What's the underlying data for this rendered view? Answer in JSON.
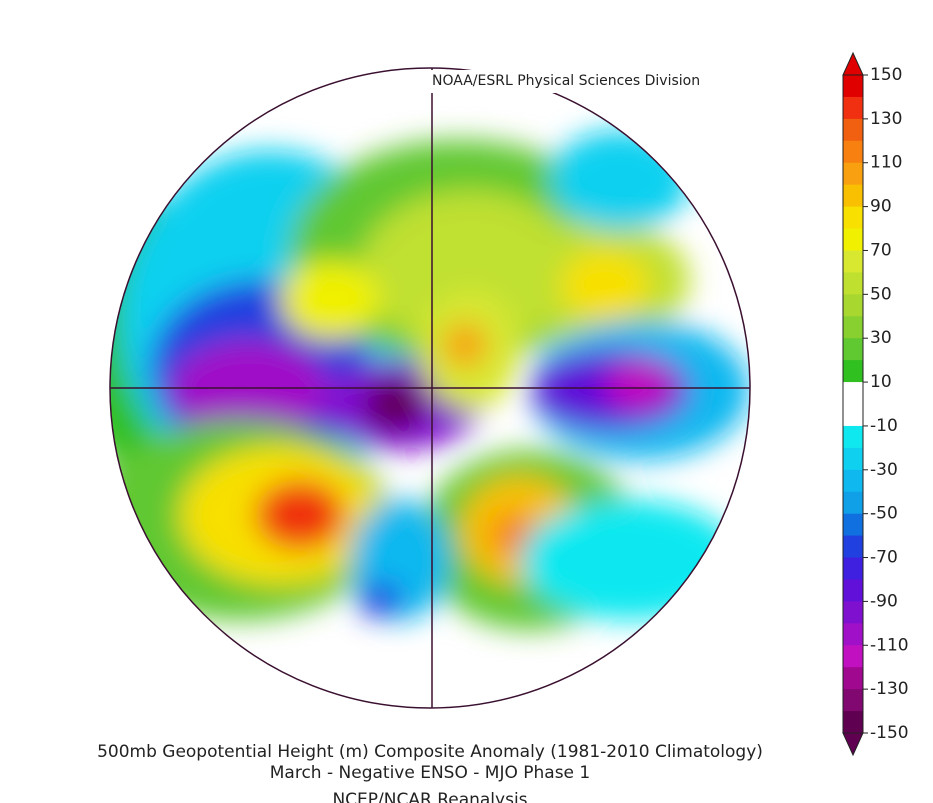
{
  "header": {
    "source": "NOAA/ESRL Physical Sciences Division"
  },
  "footer": {
    "title": "500mb Geopotential Height (m) Composite Anomaly (1981-2010 Climatology)",
    "subtitle": "March - Negative ENSO - MJO Phase 1",
    "dataset": "NCEP/NCAR Reanalysis"
  },
  "colorbar": {
    "ticks": [
      150,
      130,
      110,
      90,
      70,
      50,
      30,
      10,
      -10,
      -30,
      -50,
      -70,
      -90,
      -110,
      -130,
      -150
    ],
    "colors": [
      "#e00000",
      "#f03010",
      "#f06010",
      "#f88010",
      "#f8a010",
      "#f8c000",
      "#f8e000",
      "#f0f000",
      "#d8e830",
      "#c0e030",
      "#a8d830",
      "#88d030",
      "#60c830",
      "#30c020",
      "#ffffff",
      "#ffffff",
      "#10e8f0",
      "#10d0f0",
      "#10b8f0",
      "#10a0e8",
      "#1070e0",
      "#2040e0",
      "#4020e0",
      "#6010d8",
      "#8010d0",
      "#a010c8",
      "#c010c0",
      "#a00890",
      "#800870",
      "#600050"
    ]
  }
}
